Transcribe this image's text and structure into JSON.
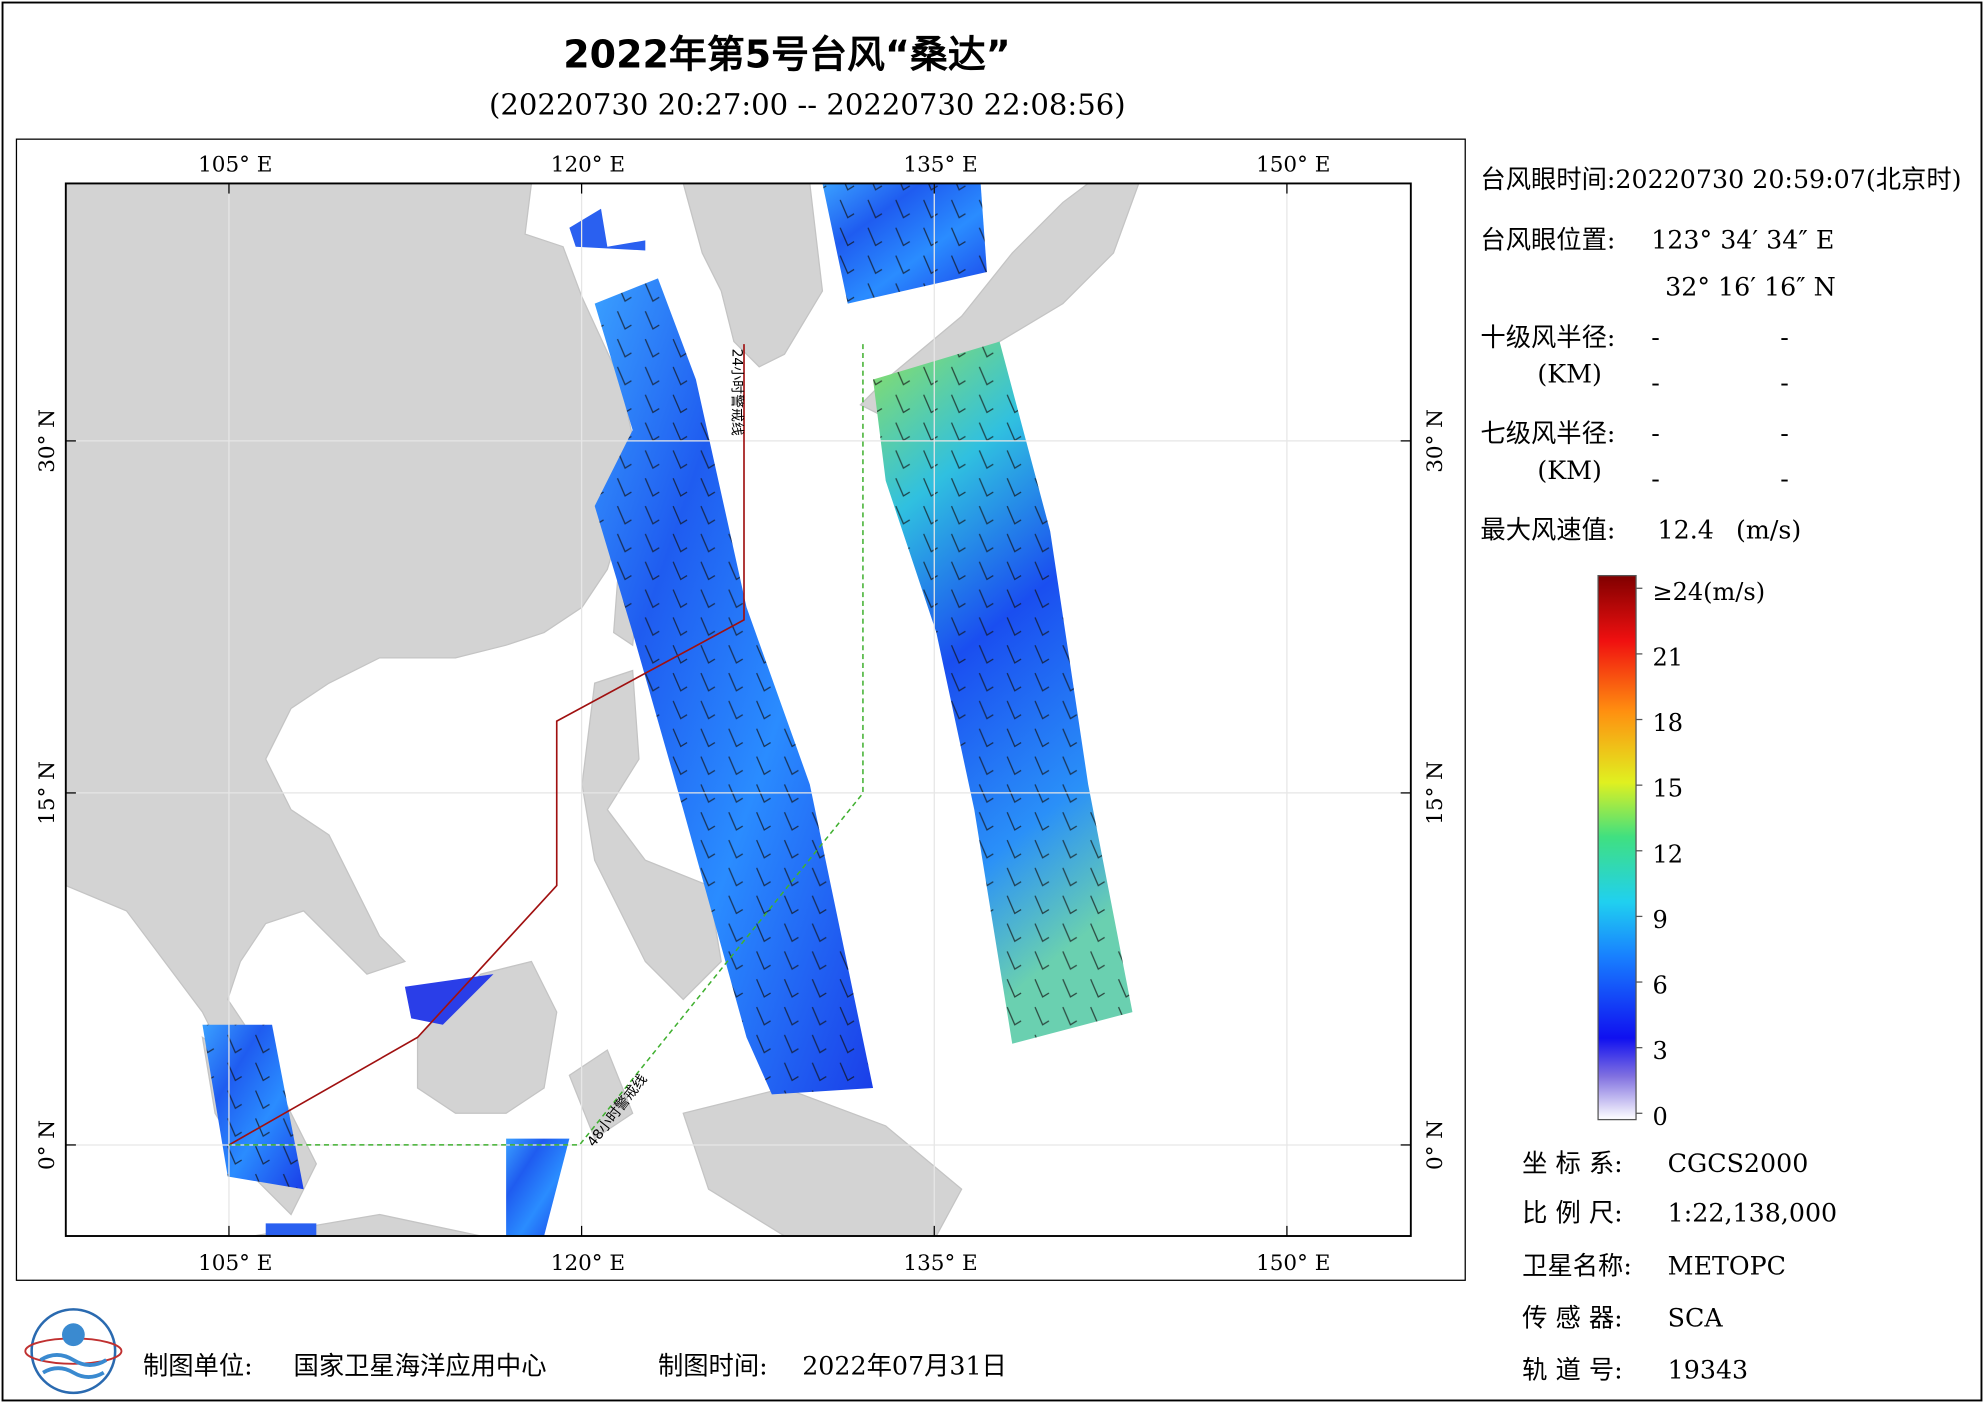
{
  "header": {
    "title": "2022年第5号台风“桑达”",
    "subtitle": "(20220730 20:27:00 -- 20220730 22:08:56)"
  },
  "map": {
    "lonlim": [
      98.06,
      155.27
    ],
    "latlim": [
      -3.88,
      40.97
    ],
    "lon_ticks": [
      {
        "value": 105,
        "label": "105° E"
      },
      {
        "value": 120,
        "label": "120° E"
      },
      {
        "value": 135,
        "label": "135° E"
      },
      {
        "value": 150,
        "label": "150° E"
      }
    ],
    "lat_ticks": [
      {
        "value": 0,
        "label": "0° N"
      },
      {
        "value": 15,
        "label": "15° N"
      },
      {
        "value": 30,
        "label": "30° N"
      }
    ],
    "warning_24h": "24小时警戒线",
    "warning_48h": "48小时警戒线"
  },
  "info": {
    "eye_time": "台风眼时间:20220730 20:59:07(北京时)",
    "eye_position_label": "台风眼位置:",
    "eye_lon": "123° 34′ 34″ E",
    "eye_lat": "32° 16′ 16″ N",
    "r10": {
      "label": "十级风半径:",
      "unit": "(KM)",
      "values": [
        "-",
        "-",
        "-",
        "-"
      ]
    },
    "r7": {
      "label": "七级风半径:",
      "unit": "(KM)",
      "values": [
        "-",
        "-",
        "-",
        "-"
      ]
    },
    "max_wind_label": "最大风速值:",
    "max_wind": 12.4,
    "max_wind_unit": "(m/s)"
  },
  "colorbar": {
    "ylim": [
      0,
      24
    ],
    "ticks": [
      {
        "value": 24,
        "label": "≥24(m/s)"
      },
      21,
      18,
      15,
      12,
      9,
      6,
      3,
      0
    ]
  },
  "meta": [
    {
      "label": "坐 标 系:",
      "value": "CGCS2000"
    },
    {
      "label": "比 例 尺:",
      "value": "1:22,138,000"
    },
    {
      "label": "卫星名称:",
      "value": "METOPC"
    },
    {
      "label": "传 感 器:",
      "value": "SCA"
    },
    {
      "label": "轨 道 号:",
      "value": "19343"
    }
  ],
  "footer": {
    "unit_label": "制图单位:",
    "unit": "国家卫星海洋应用中心",
    "time_label": "制图时间:",
    "time": "2022年07月31日"
  }
}
